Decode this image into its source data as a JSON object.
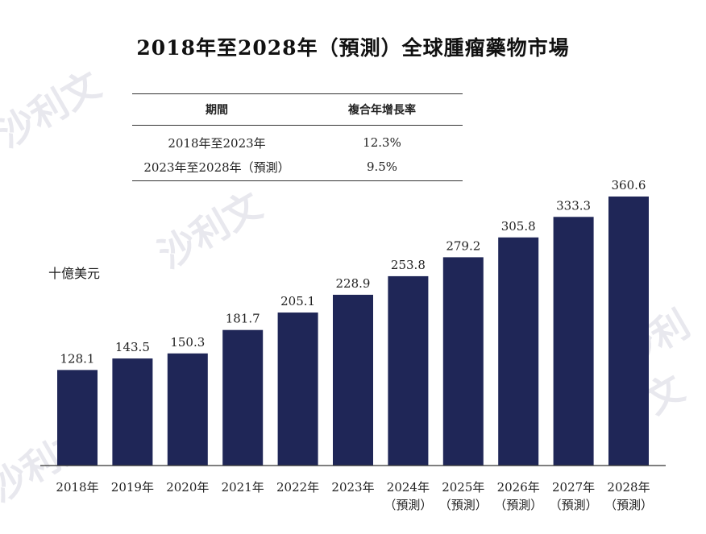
{
  "title": "2018年至2028年（預測）全球腫瘤藥物市場",
  "cagr_table": {
    "headers": [
      "期間",
      "複合年增長率"
    ],
    "rows": [
      {
        "period": "2018年至2023年",
        "rate": "12.3%"
      },
      {
        "period": "2023年至2028年（預測）",
        "rate": "9.5%"
      }
    ]
  },
  "watermarks": [
    "沙利文",
    "沙利文",
    "沙利文",
    "沙利文"
  ],
  "chart_data": {
    "type": "bar",
    "ylabel": "十億美元",
    "categories": [
      "2018年",
      "2019年",
      "2020年",
      "2021年",
      "2022年",
      "2023年",
      "2024年",
      "2025年",
      "2026年",
      "2027年",
      "2028年"
    ],
    "category_sublabels": [
      "",
      "",
      "",
      "",
      "",
      "",
      "（預測）",
      "（預測）",
      "（預測）",
      "（預測）",
      "（預測）"
    ],
    "values": [
      128.1,
      143.5,
      150.3,
      181.7,
      205.1,
      228.9,
      253.8,
      279.2,
      305.8,
      333.3,
      360.6
    ],
    "value_labels": [
      "128.1",
      "143.5",
      "150.3",
      "181.7",
      "205.1",
      "228.9",
      "253.8",
      "279.2",
      "305.8",
      "333.3",
      "360.6"
    ],
    "ylim": [
      0,
      360.6
    ],
    "bar_color": "#1f2657",
    "grid": false,
    "legend": "none"
  }
}
